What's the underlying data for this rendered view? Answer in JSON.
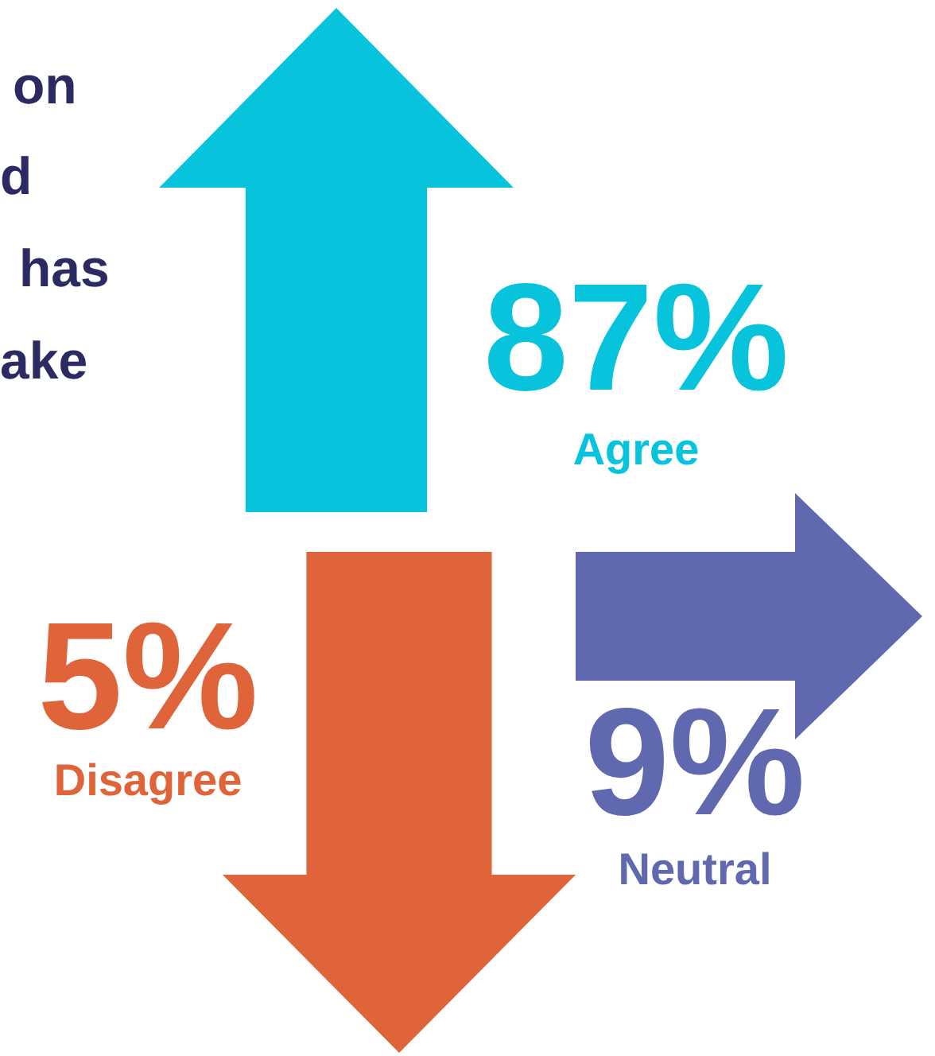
{
  "chart_data": {
    "type": "other",
    "categories": [
      "Agree",
      "Disagree",
      "Neutral"
    ],
    "values": [
      87,
      5,
      9
    ],
    "value_labels": [
      "87%",
      "5%",
      "9%"
    ],
    "colors": [
      "#07c3dc",
      "#e0643a",
      "#6068b0"
    ],
    "annotations": [
      "on",
      "d",
      "has",
      "ake"
    ]
  }
}
